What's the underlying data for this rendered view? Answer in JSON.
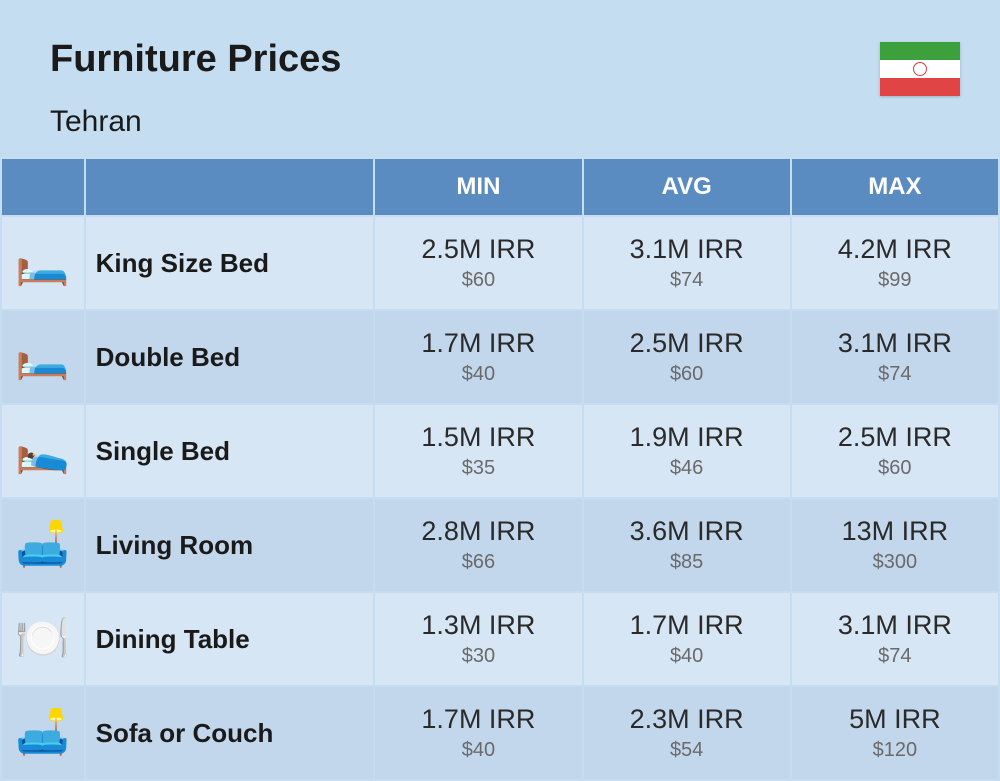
{
  "header": {
    "title": "Furniture Prices",
    "subtitle": "Tehran",
    "flag": {
      "stripes": [
        "#3ca13c",
        "#ffffff",
        "#e04444"
      ],
      "emblem_color": "#d04040"
    }
  },
  "table": {
    "columns": [
      "MIN",
      "AVG",
      "MAX"
    ],
    "header_bg": "#5a8cc2",
    "header_fg": "#ffffff",
    "row_bg_a": "#d7e6f4",
    "row_bg_b": "#c2d7ec",
    "price_main_color": "#2a2a2a",
    "price_sub_color": "#6a6a6a",
    "name_fontsize": 26,
    "price_main_fontsize": 27,
    "price_sub_fontsize": 20,
    "rows": [
      {
        "icon": "🛏️",
        "name": "King Size Bed",
        "min": {
          "irr": "2.5M IRR",
          "usd": "$60"
        },
        "avg": {
          "irr": "3.1M IRR",
          "usd": "$74"
        },
        "max": {
          "irr": "4.2M IRR",
          "usd": "$99"
        }
      },
      {
        "icon": "🛏️",
        "name": "Double Bed",
        "min": {
          "irr": "1.7M IRR",
          "usd": "$40"
        },
        "avg": {
          "irr": "2.5M IRR",
          "usd": "$60"
        },
        "max": {
          "irr": "3.1M IRR",
          "usd": "$74"
        }
      },
      {
        "icon": "🛌",
        "name": "Single Bed",
        "min": {
          "irr": "1.5M IRR",
          "usd": "$35"
        },
        "avg": {
          "irr": "1.9M IRR",
          "usd": "$46"
        },
        "max": {
          "irr": "2.5M IRR",
          "usd": "$60"
        }
      },
      {
        "icon": "🛋️",
        "name": "Living Room",
        "min": {
          "irr": "2.8M IRR",
          "usd": "$66"
        },
        "avg": {
          "irr": "3.6M IRR",
          "usd": "$85"
        },
        "max": {
          "irr": "13M IRR",
          "usd": "$300"
        }
      },
      {
        "icon": "🍽️",
        "name": "Dining Table",
        "min": {
          "irr": "1.3M IRR",
          "usd": "$30"
        },
        "avg": {
          "irr": "1.7M IRR",
          "usd": "$40"
        },
        "max": {
          "irr": "3.1M IRR",
          "usd": "$74"
        }
      },
      {
        "icon": "🛋️",
        "name": "Sofa or Couch",
        "min": {
          "irr": "1.7M IRR",
          "usd": "$40"
        },
        "avg": {
          "irr": "2.3M IRR",
          "usd": "$54"
        },
        "max": {
          "irr": "5M IRR",
          "usd": "$120"
        }
      }
    ]
  }
}
